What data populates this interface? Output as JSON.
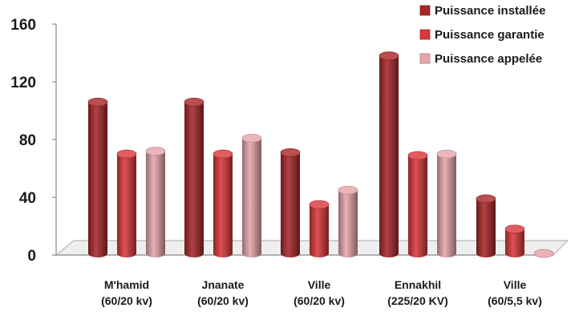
{
  "chart_data": {
    "type": "bar",
    "categories": [
      [
        "M'hamid",
        "(60/20 kv)"
      ],
      [
        "Jnanate",
        "(60/20 kv)"
      ],
      [
        "Ville",
        "(60/20 kv)"
      ],
      [
        "Ennakhil",
        "(225/20 KV)"
      ],
      [
        "Ville",
        "(60/5,5 kv)"
      ]
    ],
    "series": [
      {
        "name": "Puissance installée",
        "values": [
          106,
          106,
          71,
          138,
          39
        ],
        "color": "#a8282a"
      },
      {
        "name": "Puissance garantie",
        "values": [
          70,
          70,
          35,
          69,
          18
        ],
        "color": "#d9393d"
      },
      {
        "name": "Puissance appelée",
        "values": [
          72,
          81,
          45,
          70,
          0
        ],
        "color": "#e7a6ab"
      }
    ],
    "y_ticks": [
      0,
      40,
      80,
      120,
      160
    ],
    "ylim": [
      0,
      160
    ],
    "legend_position": "top-right",
    "grid": false,
    "style": "3d-cylinder"
  }
}
